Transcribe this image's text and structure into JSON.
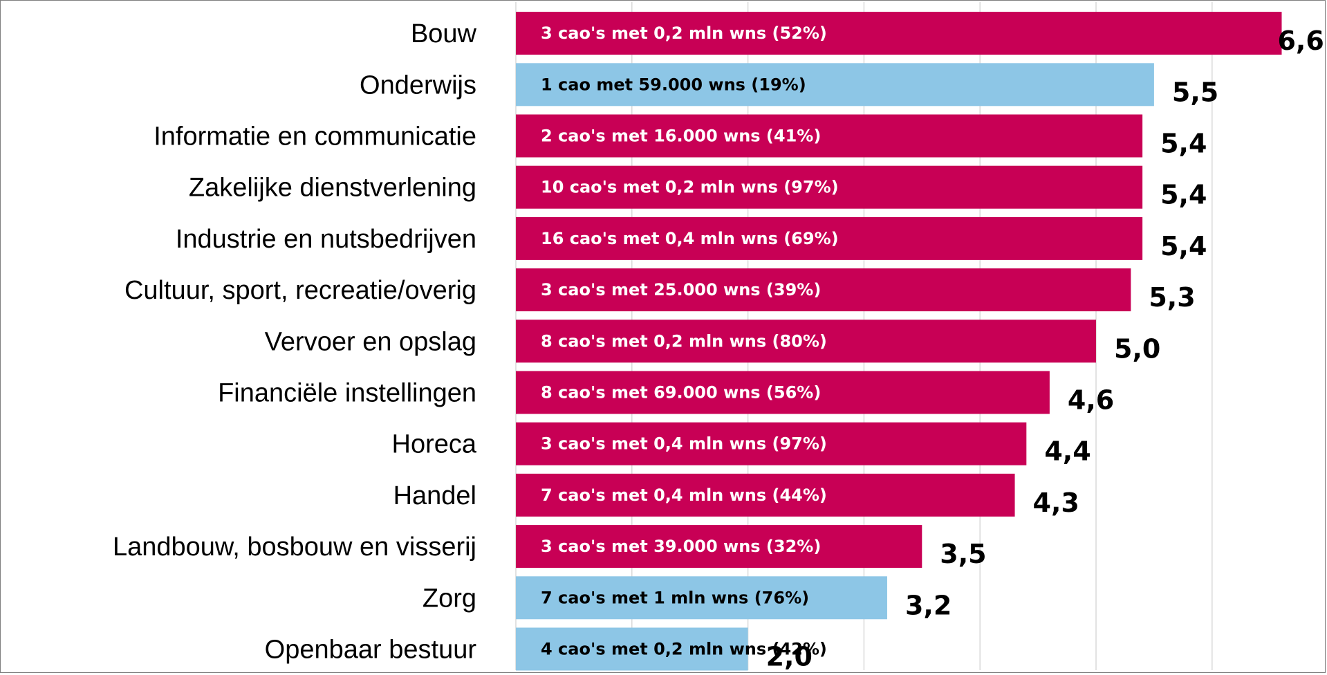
{
  "chart_data": {
    "type": "bar",
    "orientation": "horizontal",
    "categories": [
      "Bouw",
      "Onderwijs",
      "Informatie en communicatie",
      "Zakelijke dienstverlening",
      "Industrie en nutsbedrijven",
      "Cultuur, sport, recreatie/overig",
      "Vervoer en opslag",
      "Financiële instellingen",
      "Horeca",
      "Handel",
      "Landbouw, bosbouw en visserij",
      "Zorg",
      "Openbaar bestuur"
    ],
    "values": [
      6.6,
      5.5,
      5.4,
      5.4,
      5.4,
      5.3,
      5.0,
      4.6,
      4.4,
      4.3,
      3.5,
      3.2,
      2.0
    ],
    "value_labels": [
      "6,6",
      "5,5",
      "5,4",
      "5,4",
      "5,4",
      "5,3",
      "5,0",
      "4,6",
      "4,4",
      "4,3",
      "3,5",
      "3,2",
      "2,0"
    ],
    "bar_labels": [
      "3 cao's met 0,2 mln wns (52%)",
      "1 cao met 59.000 wns (19%)",
      "2 cao's met 16.000 wns (41%)",
      "10 cao's met 0,2 mln wns (97%)",
      "16 cao's met 0,4 mln wns (69%)",
      "3 cao's met 25.000 wns (39%)",
      "8 cao's met 0,2 mln wns (80%)",
      "8 cao's met 69.000 wns (56%)",
      "3 cao's met 0,4 mln wns (97%)",
      "7 cao's met 0,4 mln wns (44%)",
      "3 cao's met 39.000 wns (32%)",
      "7 cao's met 1 mln wns (76%)",
      "4 cao's met 0,2 mln wns (42%)"
    ],
    "bar_colors": [
      "#c80055",
      "#8dc6e6",
      "#c80055",
      "#c80055",
      "#c80055",
      "#c80055",
      "#c80055",
      "#c80055",
      "#c80055",
      "#c80055",
      "#c80055",
      "#8dc6e6",
      "#8dc6e6"
    ],
    "bar_label_colors": [
      "#ffffff",
      "#000000",
      "#ffffff",
      "#ffffff",
      "#ffffff",
      "#ffffff",
      "#ffffff",
      "#ffffff",
      "#ffffff",
      "#ffffff",
      "#ffffff",
      "#000000",
      "#000000"
    ],
    "xlim": [
      0,
      7
    ],
    "x_gridline_step": 1,
    "grid": true,
    "x_axis_labels_visible": false,
    "legend": "none",
    "title": "",
    "xlabel": "",
    "ylabel": "",
    "colors": {
      "magenta": "#c80055",
      "light_blue": "#8dc6e6",
      "gridline": "#d9d9d9"
    }
  }
}
